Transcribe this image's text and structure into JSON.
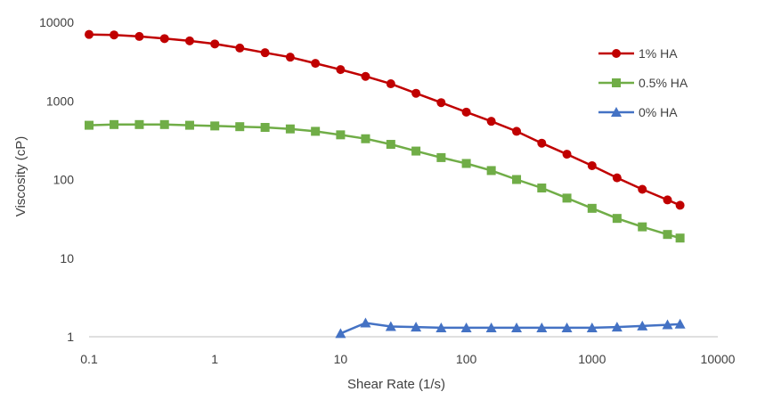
{
  "chart_data": {
    "type": "line",
    "title": "",
    "xlabel": "Shear Rate (1/s)",
    "ylabel": "Viscosity (cP)",
    "xscale": "log",
    "yscale": "log",
    "xlim": [
      0.1,
      10000
    ],
    "ylim": [
      1,
      10000
    ],
    "xticks": [
      "0.1",
      "1",
      "10",
      "100",
      "1000",
      "10000"
    ],
    "yticks": [
      "1",
      "10",
      "100",
      "1000",
      "10000"
    ],
    "legend_position": "right",
    "series": [
      {
        "name": "1% HA",
        "color": "#C00000",
        "marker": "circle",
        "x": [
          0.1,
          0.158,
          0.251,
          0.398,
          0.631,
          1,
          1.58,
          2.51,
          3.98,
          6.31,
          10,
          15.8,
          25.1,
          39.8,
          63.1,
          100,
          158,
          251,
          398,
          631,
          1000,
          1580,
          2510,
          3980,
          5010
        ],
        "y": [
          7000,
          6900,
          6600,
          6200,
          5800,
          5300,
          4700,
          4100,
          3600,
          3000,
          2500,
          2050,
          1650,
          1250,
          950,
          720,
          550,
          410,
          290,
          210,
          150,
          105,
          75,
          55,
          47
        ]
      },
      {
        "name": "0.5% HA",
        "color": "#70AD47",
        "marker": "square",
        "x": [
          0.1,
          0.158,
          0.251,
          0.398,
          0.631,
          1,
          1.58,
          2.51,
          3.98,
          6.31,
          10,
          15.8,
          25.1,
          39.8,
          63.1,
          100,
          158,
          251,
          398,
          631,
          1000,
          1580,
          2510,
          3980,
          5010
        ],
        "y": [
          490,
          500,
          500,
          500,
          490,
          480,
          470,
          460,
          440,
          410,
          370,
          330,
          280,
          230,
          190,
          160,
          130,
          100,
          78,
          58,
          43,
          32,
          25,
          20,
          18
        ]
      },
      {
        "name": "0% HA",
        "color": "#4472C4",
        "marker": "triangle",
        "x": [
          10,
          15.8,
          25.1,
          39.8,
          63.1,
          100,
          158,
          251,
          398,
          631,
          1000,
          1580,
          2510,
          3980,
          5010
        ],
        "y": [
          1.1,
          1.5,
          1.35,
          1.33,
          1.3,
          1.3,
          1.3,
          1.3,
          1.3,
          1.3,
          1.3,
          1.33,
          1.37,
          1.42,
          1.45
        ]
      }
    ]
  }
}
